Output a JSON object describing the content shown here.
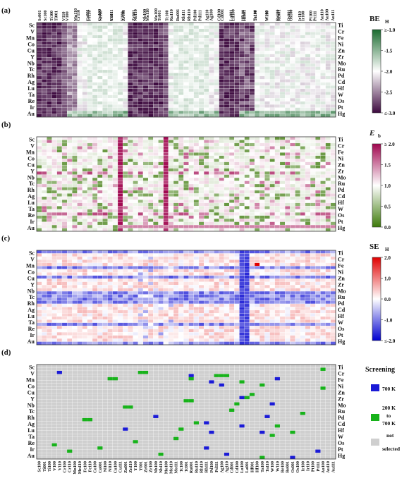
{
  "figure": {
    "panel_labels": [
      "(a)",
      "(b)",
      "(c)",
      "(d)"
    ]
  },
  "solutes_left": [
    "Sc",
    "V",
    "Mn",
    "Co",
    "Cu",
    "Y",
    "Nb",
    "Tc",
    "Rh",
    "Ag",
    "Lu",
    "Ta",
    "Re",
    "Ir",
    "Au"
  ],
  "solutes_right": [
    "Ti",
    "Cr",
    "Fe",
    "Ni",
    "Zn",
    "Zr",
    "Mo",
    "Ru",
    "Pd",
    "Cd",
    "Hf",
    "W",
    "Os",
    "Pt",
    "Hg"
  ],
  "surfaces_top_even": [
    "Sc001",
    "Ti100",
    "V110",
    "Mn110",
    "Co001",
    "Cu100",
    "Y001",
    "Zr100",
    "Nb110",
    "Mo110",
    "Tc001",
    "Ru110",
    "Rh111",
    "Pd100",
    "Ag110",
    "Cd100",
    "La001",
    "Hf100",
    "Ta100",
    "W110",
    "Re001",
    "Os100",
    "Ir100",
    "Pt111",
    "Au100"
  ],
  "surfaces_top_odd": [
    "Sc100",
    "Ti001",
    "V100",
    "Cr110",
    "Fe110",
    "Ni110",
    "Cu111",
    "Y100",
    "Zr001",
    "Nb100",
    "Mo100",
    "Tc100",
    "Ru001",
    "Rh110",
    "Pd111",
    "Ag100",
    "Cd001",
    "Lu100",
    "Hf001",
    "Ta110",
    "W100",
    "Re100",
    "Os001",
    "Ir110",
    "Pt100",
    "Au110",
    "Au111"
  ],
  "surfaces_bottom": [
    "Sc100",
    "Ti001",
    "Ti100",
    "V100",
    "V110",
    "Cr100",
    "Cr110",
    "Mn100",
    "Mn110",
    "Fe100",
    "Fe110",
    "Co100",
    "Co001",
    "Ni100",
    "Ni110",
    "Cu100",
    "Cu111",
    "Zn001",
    "Zn110",
    "Y100",
    "Y001",
    "Zr001",
    "Zr100",
    "Nb100",
    "Nb110",
    "Mo100",
    "Mo110",
    "Mo111",
    "Tc100",
    "Tc001",
    "Ru001",
    "Ru110",
    "Rh110",
    "Rh111",
    "Pd100",
    "Pd111",
    "Ag100",
    "Ag110",
    "Cd001",
    "Cd100",
    "Lu100",
    "La001",
    "Hf001",
    "Hf100",
    "Ta100",
    "Ta110",
    "W100",
    "W110",
    "Re100",
    "Re001",
    "Os001",
    "Os100",
    "Ir100",
    "Ir110",
    "Pt100",
    "Pt111",
    "Au100",
    "Au110",
    "Au111"
  ],
  "chart_data": [
    {
      "type": "heatmap",
      "panel": "(a)",
      "quantity": "BE_H",
      "colorbar": {
        "title": "BE",
        "subscript": "H",
        "min": -3.0,
        "max": 0.0,
        "ticks": [
          "≥-1.0",
          "-1.5",
          "-2.0",
          "-2.5",
          "≤-3.0"
        ],
        "colors": [
          "#1a6b2f",
          "#ffffff",
          "#3d0a3f"
        ]
      },
      "rows": 30,
      "columns": 59,
      "strong_binding_column_blocks": [
        [
          0,
          5
        ],
        [
          18,
          25
        ],
        [
          36,
          39
        ]
      ],
      "weak_binding_column_blocks": [
        [
          10,
          16
        ],
        [
          27,
          33
        ]
      ]
    },
    {
      "type": "heatmap",
      "panel": "(b)",
      "quantity": "E_b",
      "colorbar": {
        "title": "E",
        "subscript": "b",
        "min": 0.0,
        "max": 2.0,
        "ticks": [
          "≥ 2.0",
          "1.5",
          "1.0",
          "0.5",
          "0.0"
        ],
        "colors": [
          "#3d7a0a",
          "#ffffff",
          "#a0064f"
        ]
      },
      "rows": 30,
      "columns": 59,
      "high_value_columns": [
        16,
        25
      ],
      "high_value_rows": [
        11,
        24
      ]
    },
    {
      "type": "heatmap",
      "panel": "(c)",
      "quantity": "SE_H",
      "colorbar": {
        "title": "SE",
        "subscript": "H",
        "min": -2.0,
        "max": 2.0,
        "ticks": [
          "2.0",
          "1.0",
          "0.0",
          "-1.0",
          "≤-2.0"
        ],
        "colors": [
          "#0000d0",
          "#ffffff",
          "#e00000"
        ]
      },
      "rows": 30,
      "columns": 59,
      "segregating_rows": [
        0,
        5,
        8,
        13,
        14,
        15,
        16,
        23,
        29
      ],
      "segregating_columns": [
        40,
        41
      ]
    },
    {
      "type": "heatmap",
      "panel": "(d)",
      "quantity": "Screening",
      "rows": 30,
      "columns": 59,
      "legend": [
        {
          "label": "700 K",
          "color": "#1a1ad6"
        },
        {
          "label": "200 K to 700 K",
          "color": "#17b21a"
        },
        {
          "label": "not selected",
          "color": "#cfcfcf"
        }
      ],
      "legend_title": "Screening",
      "selected_700K": [
        [
          2,
          4
        ],
        [
          3,
          30
        ],
        [
          4,
          47
        ],
        [
          5,
          34
        ],
        [
          6,
          36
        ],
        [
          10,
          40
        ],
        [
          12,
          46
        ],
        [
          16,
          23
        ],
        [
          16,
          45
        ],
        [
          18,
          33
        ],
        [
          19,
          40
        ],
        [
          20,
          17
        ],
        [
          21,
          34
        ],
        [
          21,
          44
        ],
        [
          26,
          33
        ],
        [
          27,
          55
        ],
        [
          28,
          37
        ],
        [
          29,
          50
        ]
      ],
      "selected_200_700K": [
        [
          1,
          56
        ],
        [
          2,
          20
        ],
        [
          2,
          21
        ],
        [
          3,
          35
        ],
        [
          3,
          36
        ],
        [
          3,
          37
        ],
        [
          4,
          14
        ],
        [
          4,
          15
        ],
        [
          4,
          30
        ],
        [
          5,
          40
        ],
        [
          6,
          44
        ],
        [
          7,
          56
        ],
        [
          9,
          42
        ],
        [
          10,
          41
        ],
        [
          11,
          29
        ],
        [
          11,
          30
        ],
        [
          12,
          39
        ],
        [
          13,
          17
        ],
        [
          13,
          18
        ],
        [
          14,
          38
        ],
        [
          15,
          52
        ],
        [
          17,
          9
        ],
        [
          17,
          10
        ],
        [
          18,
          31
        ],
        [
          19,
          47
        ],
        [
          20,
          28
        ],
        [
          21,
          50
        ],
        [
          22,
          46
        ],
        [
          23,
          27
        ],
        [
          24,
          19
        ],
        [
          25,
          3
        ],
        [
          26,
          12
        ],
        [
          27,
          6
        ],
        [
          28,
          24
        ],
        [
          29,
          44
        ]
      ]
    }
  ]
}
